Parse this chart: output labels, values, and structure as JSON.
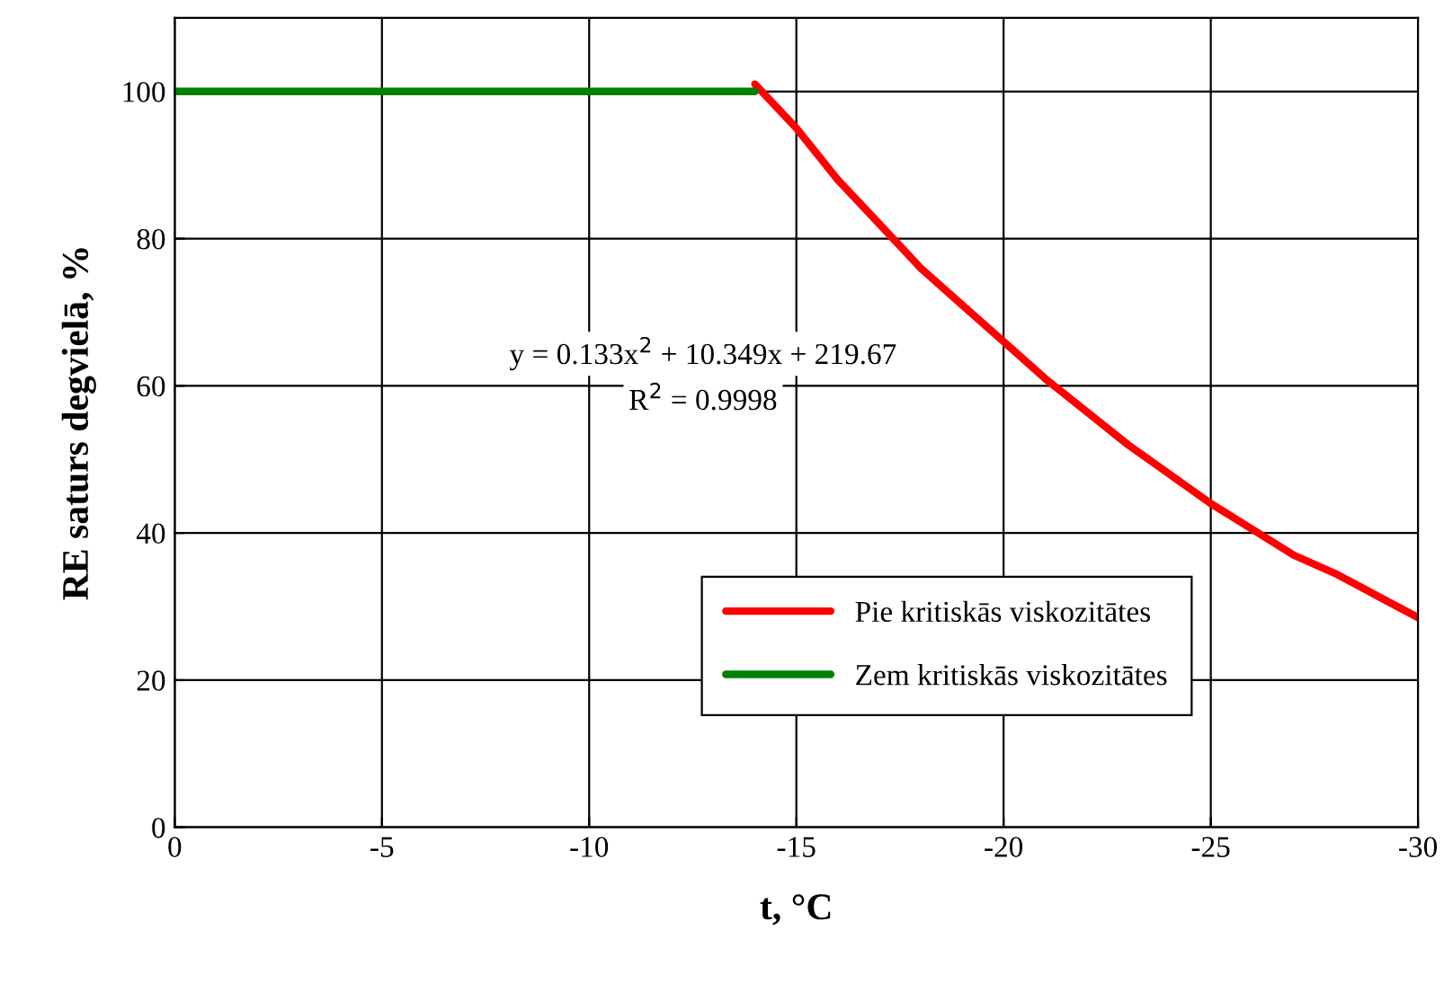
{
  "chart_data": {
    "type": "line",
    "xlabel": "t, °C",
    "ylabel": "RE saturs degvielā, %",
    "xlim": [
      0,
      -30
    ],
    "xticks": [
      0,
      -5,
      -10,
      -15,
      -20,
      -25,
      -30
    ],
    "ylim": [
      0,
      110
    ],
    "yticks": [
      0,
      20,
      40,
      60,
      80,
      100
    ],
    "grid": true,
    "legend": "lower right",
    "marker": "none",
    "line_style": "solid",
    "series": [
      {
        "name": "Pie kritiskās viskozitātes",
        "color": "#ff0000",
        "x": [
          -14,
          -15,
          -16,
          -17,
          -18,
          -19,
          -20,
          -21,
          -22,
          -23,
          -24,
          -25,
          -26,
          -27,
          -28,
          -29,
          -30
        ],
        "values": [
          101,
          95,
          88,
          82,
          76,
          71,
          66,
          61,
          56.5,
          52,
          48,
          44,
          40.5,
          37,
          34.5,
          31.5,
          28.5
        ]
      },
      {
        "name": "Zem kritiskās viskozitātes",
        "color": "#008000",
        "x": [
          0,
          -14
        ],
        "values": [
          100,
          100
        ]
      }
    ],
    "annotations": [
      "y = 0.133x$^{2}$ + 10.349x + 219.67",
      "R$^{2}$ = 0.9998"
    ]
  }
}
